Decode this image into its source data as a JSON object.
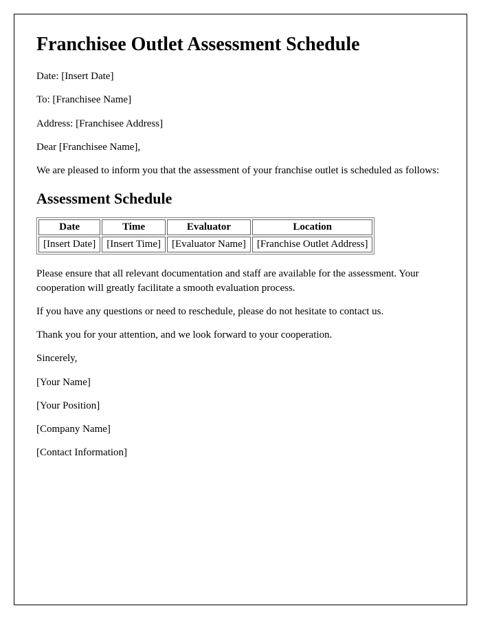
{
  "title": "Franchisee Outlet Assessment Schedule",
  "header": {
    "date_line": "Date: [Insert Date]",
    "to_line": "To: [Franchisee Name]",
    "address_line": "Address: [Franchisee Address]",
    "greeting": "Dear [Franchisee Name],"
  },
  "intro_paragraph": "We are pleased to inform you that the assessment of your franchise outlet is scheduled as follows:",
  "section_heading": "Assessment Schedule",
  "table": {
    "type": "table",
    "columns": [
      "Date",
      "Time",
      "Evaluator",
      "Location"
    ],
    "rows": [
      [
        "[Insert Date]",
        "[Insert Time]",
        "[Evaluator Name]",
        "[Franchise Outlet Address]"
      ]
    ],
    "header_fontsize": 15,
    "cell_fontsize": 15,
    "border_color": "#606060",
    "outer_border_color": "#808080",
    "background_color": "#ffffff"
  },
  "body_paragraphs": {
    "p1": "Please ensure that all relevant documentation and staff are available for the assessment. Your cooperation will greatly facilitate a smooth evaluation process.",
    "p2": "If you have any questions or need to reschedule, please do not hesitate to contact us.",
    "p3": "Thank you for your attention, and we look forward to your cooperation."
  },
  "closing": {
    "sincerely": "Sincerely,",
    "name": "[Your Name]",
    "position": "[Your Position]",
    "company": "[Company Name]",
    "contact": "[Contact Information]"
  },
  "styling": {
    "font_family": "Times New Roman",
    "title_fontsize": 28,
    "heading_fontsize": 22,
    "body_fontsize": 15,
    "text_color": "#000000",
    "background_color": "#ffffff",
    "frame_border_color": "#000000"
  }
}
